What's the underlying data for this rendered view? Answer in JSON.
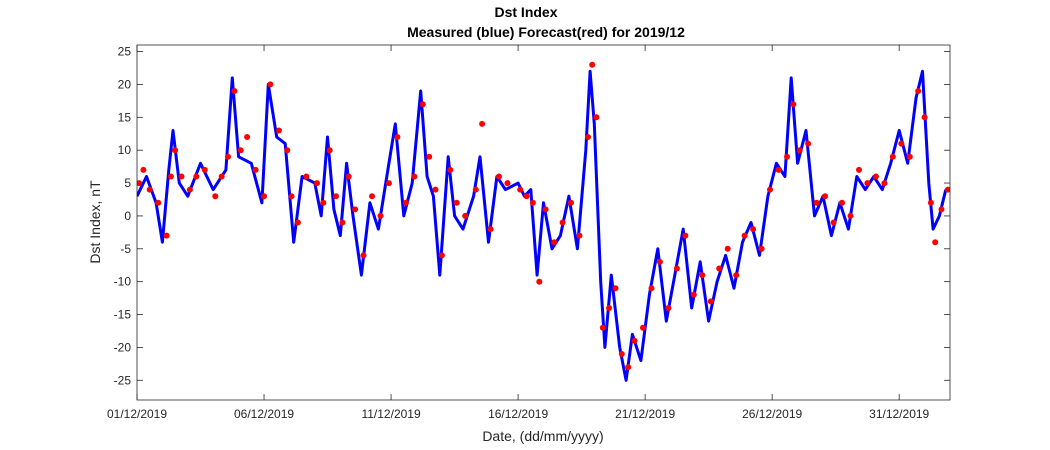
{
  "chart_data": {
    "type": "line",
    "title": "Dst Index",
    "subtitle": "Measured (blue) Forecast(red) for 2019/12",
    "xlabel": "Date, (dd/mm/yyyy)",
    "ylabel": "Dst Index, nT",
    "xlim": [
      "2019-12-01",
      "2020-01-02"
    ],
    "ylim": [
      -28,
      26
    ],
    "yticks": [
      -25,
      -20,
      -15,
      -10,
      -5,
      0,
      5,
      10,
      15,
      20,
      25
    ],
    "xticks": [
      "2019-12-01",
      "2019-12-06",
      "2019-12-11",
      "2019-12-16",
      "2019-12-21",
      "2019-12-26",
      "2019-12-31"
    ],
    "xtick_labels": [
      "01/12/2019",
      "06/12/2019",
      "11/12/2019",
      "16/12/2019",
      "21/12/2019",
      "26/12/2019",
      "31/12/2019"
    ],
    "grid": false,
    "series": [
      {
        "name": "Measured",
        "style": "line",
        "color": "#0000ff",
        "points": [
          [
            "2019-12-01 00:00",
            3
          ],
          [
            "2019-12-01 09:00",
            6
          ],
          [
            "2019-12-01 18:00",
            2
          ],
          [
            "2019-12-02 00:00",
            -4
          ],
          [
            "2019-12-02 06:00",
            7
          ],
          [
            "2019-12-02 10:00",
            13
          ],
          [
            "2019-12-02 16:00",
            5
          ],
          [
            "2019-12-03 00:00",
            3
          ],
          [
            "2019-12-03 12:00",
            8
          ],
          [
            "2019-12-04 00:00",
            4
          ],
          [
            "2019-12-04 12:00",
            7
          ],
          [
            "2019-12-04 18:00",
            21
          ],
          [
            "2019-12-05 00:00",
            9
          ],
          [
            "2019-12-05 12:00",
            8
          ],
          [
            "2019-12-05 22:00",
            2
          ],
          [
            "2019-12-06 04:00",
            20
          ],
          [
            "2019-12-06 12:00",
            12
          ],
          [
            "2019-12-06 20:00",
            11
          ],
          [
            "2019-12-07 04:00",
            -4
          ],
          [
            "2019-12-07 12:00",
            6
          ],
          [
            "2019-12-08 00:00",
            5
          ],
          [
            "2019-12-08 06:00",
            0
          ],
          [
            "2019-12-08 12:00",
            12
          ],
          [
            "2019-12-08 18:00",
            1
          ],
          [
            "2019-12-09 00:00",
            -3
          ],
          [
            "2019-12-09 06:00",
            8
          ],
          [
            "2019-12-09 12:00",
            0
          ],
          [
            "2019-12-09 20:00",
            -9
          ],
          [
            "2019-12-10 04:00",
            2
          ],
          [
            "2019-12-10 12:00",
            -2
          ],
          [
            "2019-12-10 20:00",
            6
          ],
          [
            "2019-12-11 04:00",
            14
          ],
          [
            "2019-12-11 12:00",
            0
          ],
          [
            "2019-12-11 20:00",
            5
          ],
          [
            "2019-12-12 04:00",
            19
          ],
          [
            "2019-12-12 10:00",
            6
          ],
          [
            "2019-12-12 16:00",
            3
          ],
          [
            "2019-12-12 22:00",
            -9
          ],
          [
            "2019-12-13 06:00",
            9
          ],
          [
            "2019-12-13 12:00",
            0
          ],
          [
            "2019-12-13 20:00",
            -2
          ],
          [
            "2019-12-14 06:00",
            3
          ],
          [
            "2019-12-14 12:00",
            9
          ],
          [
            "2019-12-14 20:00",
            -4
          ],
          [
            "2019-12-15 04:00",
            6
          ],
          [
            "2019-12-15 12:00",
            4
          ],
          [
            "2019-12-16 00:00",
            5
          ],
          [
            "2019-12-16 06:00",
            3
          ],
          [
            "2019-12-16 12:00",
            4
          ],
          [
            "2019-12-16 18:00",
            -9
          ],
          [
            "2019-12-17 00:00",
            2
          ],
          [
            "2019-12-17 08:00",
            -5
          ],
          [
            "2019-12-17 16:00",
            -3
          ],
          [
            "2019-12-18 00:00",
            3
          ],
          [
            "2019-12-18 08:00",
            -5
          ],
          [
            "2019-12-18 16:00",
            10
          ],
          [
            "2019-12-18 20:00",
            22
          ],
          [
            "2019-12-19 00:00",
            14
          ],
          [
            "2019-12-19 06:00",
            -10
          ],
          [
            "2019-12-19 10:00",
            -20
          ],
          [
            "2019-12-19 16:00",
            -9
          ],
          [
            "2019-12-20 00:00",
            -20
          ],
          [
            "2019-12-20 06:00",
            -25
          ],
          [
            "2019-12-20 12:00",
            -18
          ],
          [
            "2019-12-20 20:00",
            -22
          ],
          [
            "2019-12-21 04:00",
            -12
          ],
          [
            "2019-12-21 12:00",
            -5
          ],
          [
            "2019-12-21 20:00",
            -16
          ],
          [
            "2019-12-22 04:00",
            -9
          ],
          [
            "2019-12-22 12:00",
            -2
          ],
          [
            "2019-12-22 20:00",
            -14
          ],
          [
            "2019-12-23 04:00",
            -7
          ],
          [
            "2019-12-23 12:00",
            -16
          ],
          [
            "2019-12-23 20:00",
            -10
          ],
          [
            "2019-12-24 04:00",
            -6
          ],
          [
            "2019-12-24 12:00",
            -11
          ],
          [
            "2019-12-24 20:00",
            -4
          ],
          [
            "2019-12-25 04:00",
            -1
          ],
          [
            "2019-12-25 12:00",
            -6
          ],
          [
            "2019-12-25 20:00",
            3
          ],
          [
            "2019-12-26 04:00",
            8
          ],
          [
            "2019-12-26 12:00",
            6
          ],
          [
            "2019-12-26 18:00",
            21
          ],
          [
            "2019-12-27 00:00",
            8
          ],
          [
            "2019-12-27 08:00",
            13
          ],
          [
            "2019-12-27 16:00",
            0
          ],
          [
            "2019-12-28 00:00",
            3
          ],
          [
            "2019-12-28 08:00",
            -3
          ],
          [
            "2019-12-28 16:00",
            2
          ],
          [
            "2019-12-29 00:00",
            -2
          ],
          [
            "2019-12-29 08:00",
            6
          ],
          [
            "2019-12-29 16:00",
            4
          ],
          [
            "2019-12-30 00:00",
            6
          ],
          [
            "2019-12-30 08:00",
            4
          ],
          [
            "2019-12-30 16:00",
            8
          ],
          [
            "2019-12-31 00:00",
            13
          ],
          [
            "2019-12-31 08:00",
            8
          ],
          [
            "2019-12-31 16:00",
            18
          ],
          [
            "2019-12-31 22:00",
            22
          ],
          [
            "2020-01-01 04:00",
            5
          ],
          [
            "2020-01-01 08:00",
            -2
          ],
          [
            "2020-01-01 14:00",
            0
          ],
          [
            "2020-01-01 20:00",
            4
          ]
        ]
      },
      {
        "name": "Forecast",
        "style": "markers",
        "color": "#ff0000",
        "points": [
          [
            "2019-12-01 02:00",
            5
          ],
          [
            "2019-12-01 06:00",
            7
          ],
          [
            "2019-12-01 12:00",
            4
          ],
          [
            "2019-12-01 20:00",
            2
          ],
          [
            "2019-12-02 04:00",
            -3
          ],
          [
            "2019-12-02 08:00",
            6
          ],
          [
            "2019-12-02 12:00",
            10
          ],
          [
            "2019-12-02 18:00",
            6
          ],
          [
            "2019-12-03 02:00",
            4
          ],
          [
            "2019-12-03 08:00",
            6
          ],
          [
            "2019-12-03 16:00",
            7
          ],
          [
            "2019-12-04 02:00",
            3
          ],
          [
            "2019-12-04 08:00",
            6
          ],
          [
            "2019-12-04 14:00",
            9
          ],
          [
            "2019-12-04 20:00",
            19
          ],
          [
            "2019-12-05 02:00",
            10
          ],
          [
            "2019-12-05 08:00",
            12
          ],
          [
            "2019-12-05 16:00",
            7
          ],
          [
            "2019-12-06 00:00",
            3
          ],
          [
            "2019-12-06 06:00",
            20
          ],
          [
            "2019-12-06 14:00",
            13
          ],
          [
            "2019-12-06 22:00",
            10
          ],
          [
            "2019-12-07 02:00",
            3
          ],
          [
            "2019-12-07 08:00",
            -1
          ],
          [
            "2019-12-07 16:00",
            6
          ],
          [
            "2019-12-08 02:00",
            5
          ],
          [
            "2019-12-08 08:00",
            2
          ],
          [
            "2019-12-08 14:00",
            10
          ],
          [
            "2019-12-08 20:00",
            3
          ],
          [
            "2019-12-09 02:00",
            -1
          ],
          [
            "2019-12-09 08:00",
            6
          ],
          [
            "2019-12-09 14:00",
            1
          ],
          [
            "2019-12-09 22:00",
            -6
          ],
          [
            "2019-12-10 06:00",
            3
          ],
          [
            "2019-12-10 14:00",
            0
          ],
          [
            "2019-12-10 22:00",
            5
          ],
          [
            "2019-12-11 06:00",
            12
          ],
          [
            "2019-12-11 14:00",
            2
          ],
          [
            "2019-12-11 22:00",
            6
          ],
          [
            "2019-12-12 06:00",
            17
          ],
          [
            "2019-12-12 12:00",
            9
          ],
          [
            "2019-12-12 18:00",
            4
          ],
          [
            "2019-12-13 00:00",
            -6
          ],
          [
            "2019-12-13 08:00",
            7
          ],
          [
            "2019-12-13 14:00",
            2
          ],
          [
            "2019-12-13 22:00",
            0
          ],
          [
            "2019-12-14 08:00",
            4
          ],
          [
            "2019-12-14 14:00",
            14
          ],
          [
            "2019-12-14 22:00",
            -2
          ],
          [
            "2019-12-15 06:00",
            6
          ],
          [
            "2019-12-15 14:00",
            5
          ],
          [
            "2019-12-16 02:00",
            4
          ],
          [
            "2019-12-16 08:00",
            3
          ],
          [
            "2019-12-16 14:00",
            2
          ],
          [
            "2019-12-16 20:00",
            -10
          ],
          [
            "2019-12-17 02:00",
            1
          ],
          [
            "2019-12-17 10:00",
            -4
          ],
          [
            "2019-12-17 18:00",
            -1
          ],
          [
            "2019-12-18 02:00",
            2
          ],
          [
            "2019-12-18 10:00",
            -3
          ],
          [
            "2019-12-18 18:00",
            12
          ],
          [
            "2019-12-18 22:00",
            23
          ],
          [
            "2019-12-19 02:00",
            15
          ],
          [
            "2019-12-19 08:00",
            -17
          ],
          [
            "2019-12-19 14:00",
            -14
          ],
          [
            "2019-12-19 20:00",
            -11
          ],
          [
            "2019-12-20 02:00",
            -21
          ],
          [
            "2019-12-20 08:00",
            -23
          ],
          [
            "2019-12-20 14:00",
            -19
          ],
          [
            "2019-12-20 22:00",
            -17
          ],
          [
            "2019-12-21 06:00",
            -11
          ],
          [
            "2019-12-21 14:00",
            -7
          ],
          [
            "2019-12-21 22:00",
            -14
          ],
          [
            "2019-12-22 06:00",
            -8
          ],
          [
            "2019-12-22 14:00",
            -3
          ],
          [
            "2019-12-22 22:00",
            -12
          ],
          [
            "2019-12-23 06:00",
            -9
          ],
          [
            "2019-12-23 14:00",
            -13
          ],
          [
            "2019-12-23 22:00",
            -8
          ],
          [
            "2019-12-24 06:00",
            -5
          ],
          [
            "2019-12-24 14:00",
            -9
          ],
          [
            "2019-12-24 22:00",
            -3
          ],
          [
            "2019-12-25 06:00",
            -2
          ],
          [
            "2019-12-25 14:00",
            -5
          ],
          [
            "2019-12-25 22:00",
            4
          ],
          [
            "2019-12-26 06:00",
            7
          ],
          [
            "2019-12-26 14:00",
            9
          ],
          [
            "2019-12-26 20:00",
            17
          ],
          [
            "2019-12-27 02:00",
            10
          ],
          [
            "2019-12-27 10:00",
            11
          ],
          [
            "2019-12-27 18:00",
            2
          ],
          [
            "2019-12-28 02:00",
            3
          ],
          [
            "2019-12-28 10:00",
            -1
          ],
          [
            "2019-12-28 18:00",
            2
          ],
          [
            "2019-12-29 02:00",
            0
          ],
          [
            "2019-12-29 10:00",
            7
          ],
          [
            "2019-12-29 18:00",
            5
          ],
          [
            "2019-12-30 02:00",
            6
          ],
          [
            "2019-12-30 10:00",
            5
          ],
          [
            "2019-12-30 18:00",
            9
          ],
          [
            "2019-12-31 02:00",
            11
          ],
          [
            "2019-12-31 10:00",
            9
          ],
          [
            "2019-12-31 18:00",
            19
          ],
          [
            "2020-01-01 00:00",
            15
          ],
          [
            "2020-01-01 06:00",
            2
          ],
          [
            "2020-01-01 10:00",
            -4
          ],
          [
            "2020-01-01 16:00",
            1
          ],
          [
            "2020-01-01 22:00",
            4
          ]
        ]
      }
    ]
  }
}
